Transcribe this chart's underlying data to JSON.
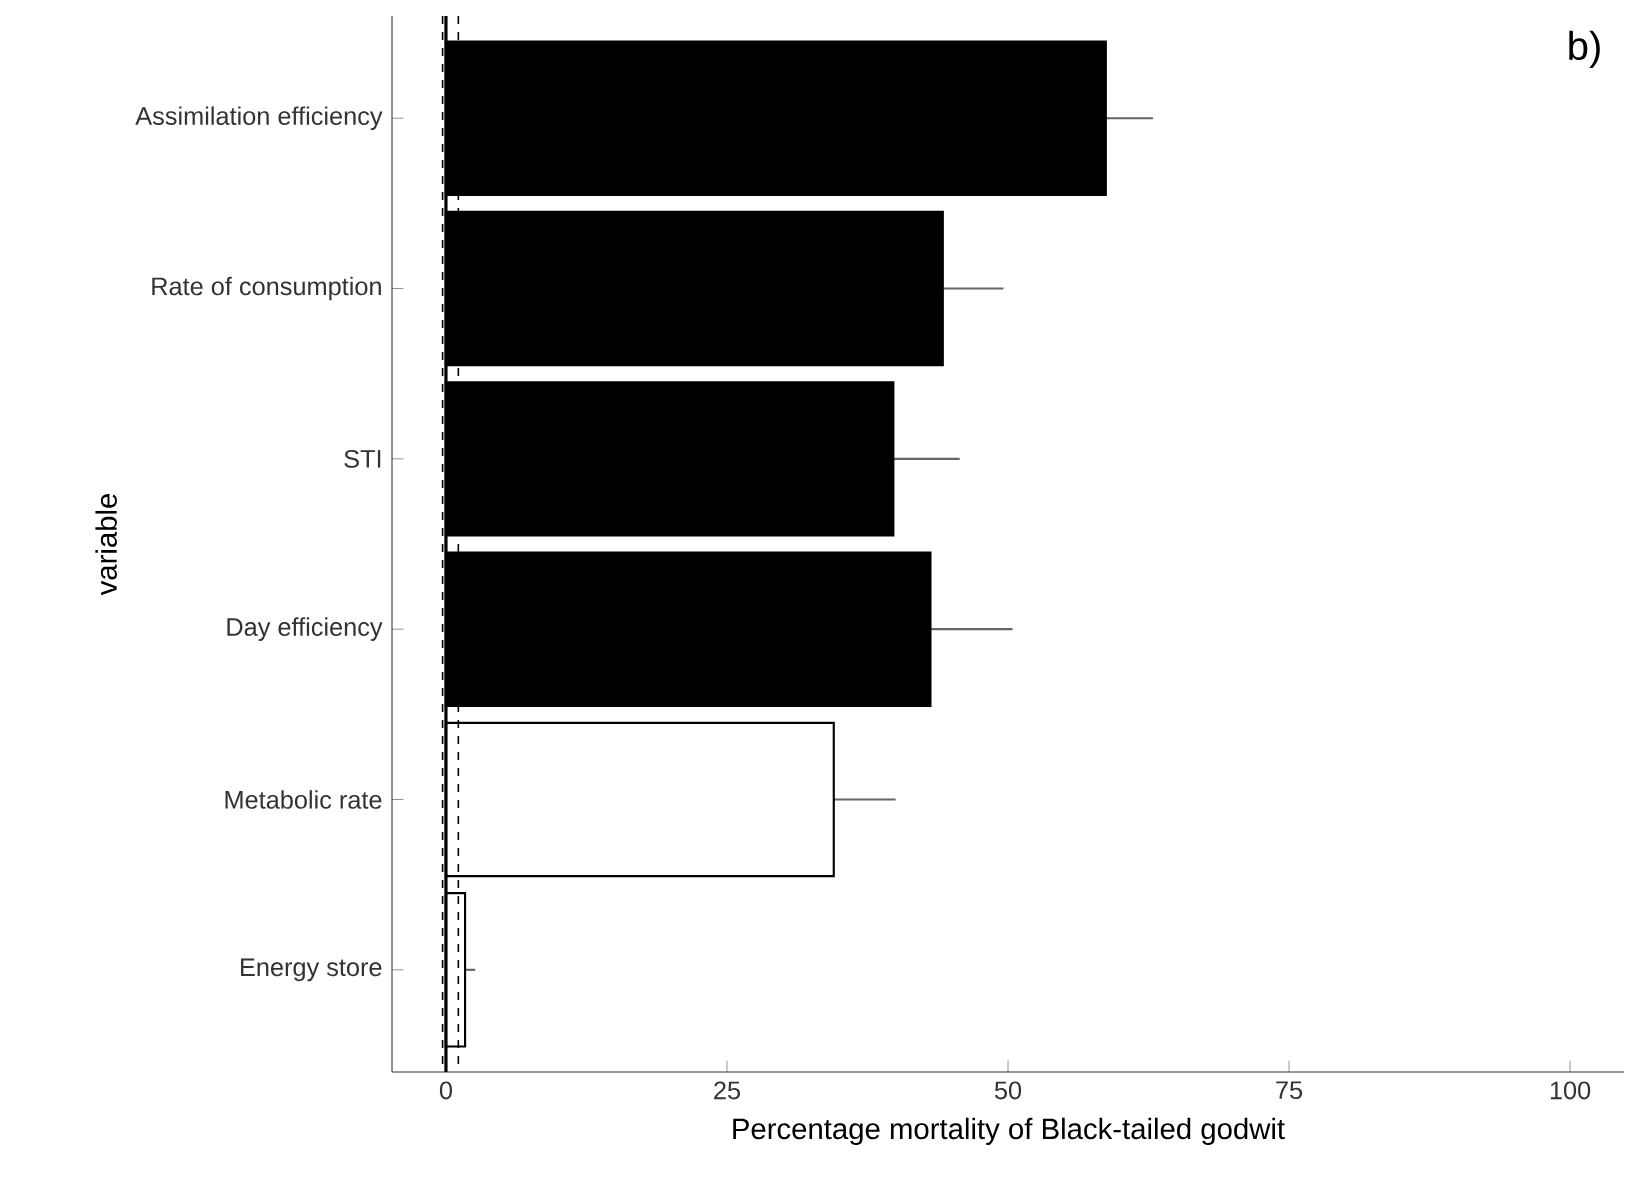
{
  "chart_data": {
    "type": "bar",
    "orientation": "horizontal",
    "xlabel": "Percentage mortality of Black-tailed godwit",
    "ylabel": "variable",
    "categories": [
      "Assimilation efficiency",
      "Rate of consumption",
      "STI",
      "Day efficiency",
      "Metabolic rate",
      "Energy store"
    ],
    "values": [
      58.7,
      44.2,
      39.8,
      43.1,
      34.5,
      1.7
    ],
    "errors": [
      4.2,
      5.4,
      5.9,
      7.3,
      5.5,
      0.9
    ],
    "colors": [
      "#000000",
      "#000000",
      "#000000",
      "#000000",
      "#ffffff",
      "#ffffff"
    ],
    "xlim": [
      -4.8,
      104.8
    ],
    "xticks": [
      0,
      25,
      50,
      75,
      100
    ],
    "ref_lines": [
      {
        "axis": "x",
        "value": 0,
        "line_style": "solid"
      },
      {
        "axis": "x",
        "value": -0.3,
        "line_style": "dashed"
      },
      {
        "axis": "x",
        "value": 1.1,
        "line_style": "dashed"
      }
    ],
    "annotations": [
      "b)"
    ]
  }
}
